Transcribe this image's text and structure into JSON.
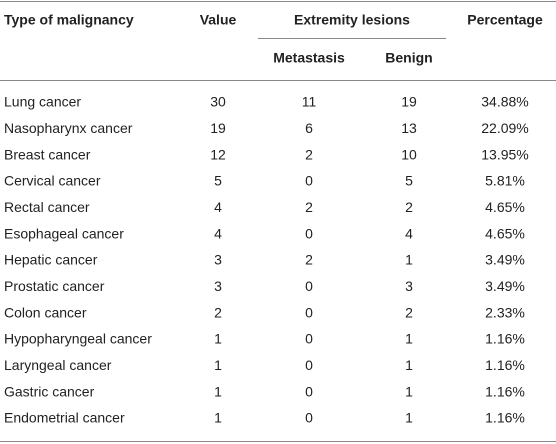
{
  "table": {
    "headers": {
      "type": "Type of malignancy",
      "value": "Value",
      "group": "Extremity lesions",
      "metastasis": "Metastasis",
      "benign": "Benign",
      "percentage": "Percentage"
    },
    "rows": [
      [
        "Lung cancer",
        30,
        11,
        19,
        "34.88%"
      ],
      [
        "Nasopharynx cancer",
        19,
        6,
        13,
        "22.09%"
      ],
      [
        "Breast cancer",
        12,
        2,
        10,
        "13.95%"
      ],
      [
        "Cervical cancer",
        5,
        0,
        5,
        "5.81%"
      ],
      [
        "Rectal cancer",
        4,
        2,
        2,
        "4.65%"
      ],
      [
        "Esophageal cancer",
        4,
        0,
        4,
        "4.65%"
      ],
      [
        "Hepatic cancer",
        3,
        2,
        1,
        "3.49%"
      ],
      [
        "Prostatic cancer",
        3,
        0,
        3,
        "3.49%"
      ],
      [
        "Colon cancer",
        2,
        0,
        2,
        "2.33%"
      ],
      [
        "Hypopharyngeal cancer",
        1,
        0,
        1,
        "1.16%"
      ],
      [
        "Laryngeal cancer",
        1,
        0,
        1,
        "1.16%"
      ],
      [
        "Gastric cancer",
        1,
        0,
        1,
        "1.16%"
      ],
      [
        "Endometrial cancer",
        1,
        0,
        1,
        "1.16%"
      ]
    ]
  }
}
